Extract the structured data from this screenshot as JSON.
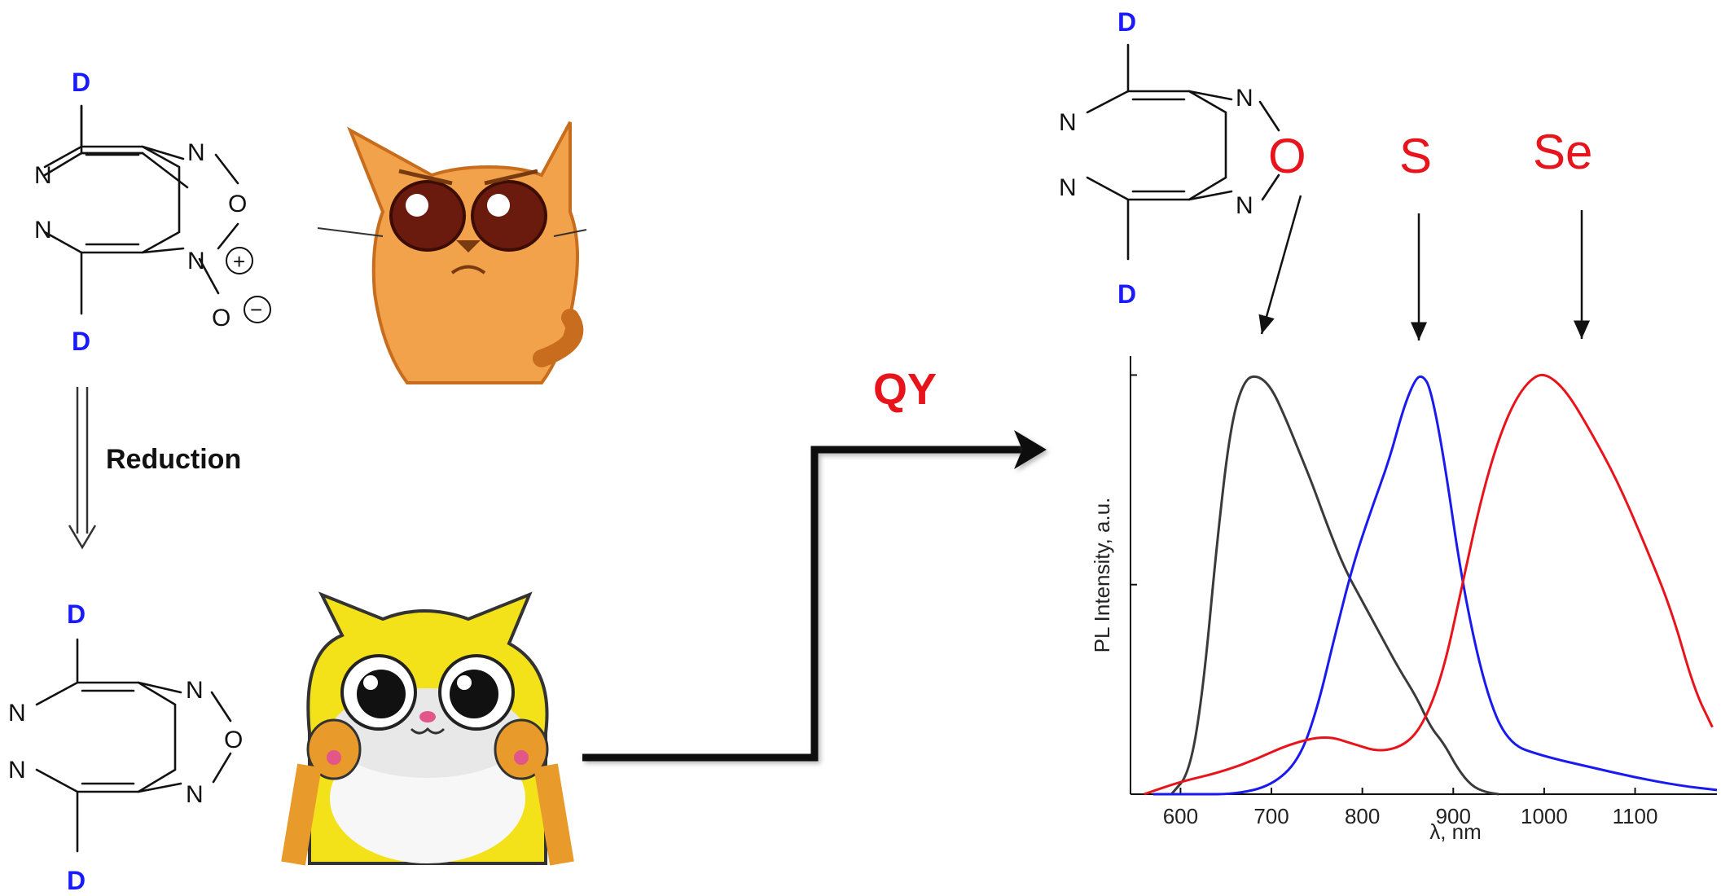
{
  "molecule_top": {
    "donor_top": "D",
    "donor_bottom": "D",
    "atoms": {
      "n1": "N",
      "n2": "N",
      "n3": "N",
      "o_ring": "O",
      "n_plus": "N",
      "o_minus": "O"
    },
    "charge_plus": "+",
    "charge_minus": "−"
  },
  "reduction_label": "Reduction",
  "molecule_bottom": {
    "donor_top": "D",
    "donor_bottom": "D",
    "atoms": {
      "n1": "N",
      "n2": "N",
      "n3": "N",
      "o_ring": "O",
      "n4": "N"
    }
  },
  "molecule_right": {
    "donor_top": "D",
    "donor_bottom": "D",
    "atoms": {
      "n1": "N",
      "n2": "N",
      "n3": "N",
      "n4": "N"
    },
    "heteroatom": "O"
  },
  "qy_label": "QY",
  "series_labels": {
    "s": "S",
    "se": "Se"
  },
  "colors": {
    "donor": "#1a1aff",
    "red": "#e8141c",
    "blue": "#1a1aee",
    "dark": "#3a3a3a",
    "cat_orange": "#f2a24a",
    "cat_yellow": "#f3e21a"
  },
  "icons": {
    "sad_cat": "sad-cat-icon",
    "happy_cat": "happy-cat-icon"
  },
  "chart_data": {
    "type": "line",
    "xlabel": "λ, nm",
    "ylabel": "PL Intensity, a.u.",
    "xlim": [
      545,
      1190
    ],
    "ylim": [
      0,
      1.03
    ],
    "x_ticks": [
      "600",
      "700",
      "800",
      "900",
      "1000",
      "1100"
    ],
    "x_tick_values": [
      600,
      700,
      800,
      900,
      1000,
      1100
    ],
    "y_tick_values": [
      0,
      0.5,
      1.0
    ],
    "grid": false,
    "series": [
      {
        "name": "O",
        "color": "#3a3a3a",
        "x": [
          590,
          610,
          625,
          640,
          655,
          670,
          685,
          700,
          715,
          730,
          745,
          760,
          780,
          800,
          820,
          840,
          860,
          875,
          890,
          905,
          920,
          935,
          950
        ],
        "y": [
          0.0,
          0.05,
          0.25,
          0.6,
          0.88,
          0.99,
          1.0,
          0.97,
          0.9,
          0.82,
          0.74,
          0.65,
          0.54,
          0.46,
          0.38,
          0.3,
          0.23,
          0.16,
          0.12,
          0.06,
          0.02,
          0.005,
          0.0
        ]
      },
      {
        "name": "S",
        "color": "#1a1aee",
        "x": [
          570,
          620,
          660,
          700,
          730,
          750,
          770,
          790,
          810,
          830,
          845,
          858,
          866,
          875,
          890,
          910,
          935,
          960,
          1000,
          1050,
          1100,
          1150,
          1190
        ],
        "y": [
          0.0,
          0.0,
          0.0,
          0.02,
          0.08,
          0.2,
          0.38,
          0.55,
          0.68,
          0.8,
          0.92,
          0.99,
          1.0,
          0.97,
          0.8,
          0.5,
          0.25,
          0.12,
          0.09,
          0.065,
          0.04,
          0.02,
          0.01
        ]
      },
      {
        "name": "Se",
        "color": "#e8141c",
        "x": [
          560,
          600,
          640,
          680,
          720,
          760,
          790,
          820,
          850,
          870,
          890,
          910,
          930,
          950,
          970,
          990,
          1005,
          1025,
          1050,
          1080,
          1110,
          1140,
          1165,
          1185
        ],
        "y": [
          0.0,
          0.03,
          0.05,
          0.08,
          0.12,
          0.14,
          0.12,
          0.1,
          0.12,
          0.18,
          0.3,
          0.5,
          0.7,
          0.85,
          0.95,
          1.0,
          1.0,
          0.96,
          0.87,
          0.75,
          0.6,
          0.44,
          0.25,
          0.16
        ]
      }
    ]
  }
}
